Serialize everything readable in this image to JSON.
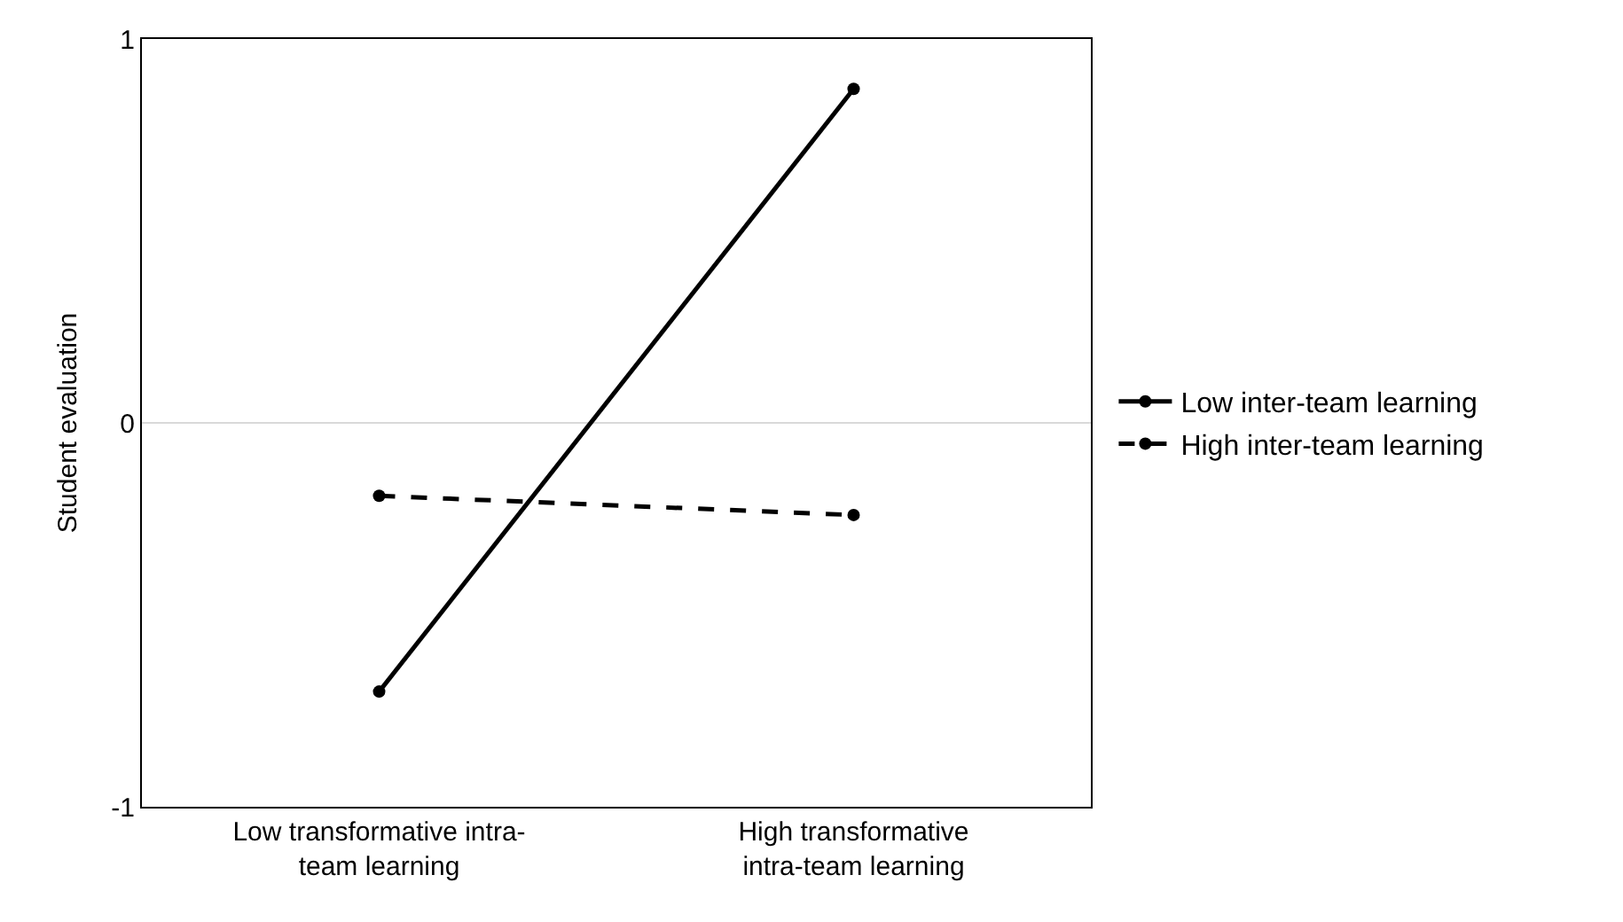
{
  "chart_data": {
    "type": "line",
    "ylabel": "Student evaluation",
    "categories": [
      "Low transformative intra-team learning",
      "High transformative intra-team learning"
    ],
    "series": [
      {
        "name": "Low inter-team learning",
        "color": "#000000",
        "values": [
          -0.7,
          0.87
        ],
        "line_style": "solid"
      },
      {
        "name": "High inter-team learning",
        "color": "#000000",
        "values": [
          -0.19,
          -0.24
        ],
        "line_style": "dashed"
      }
    ],
    "ylim": [
      -1,
      1
    ],
    "yticks": [
      -1,
      0,
      1
    ],
    "grid": "y",
    "legend": "right",
    "marker": "circle"
  }
}
